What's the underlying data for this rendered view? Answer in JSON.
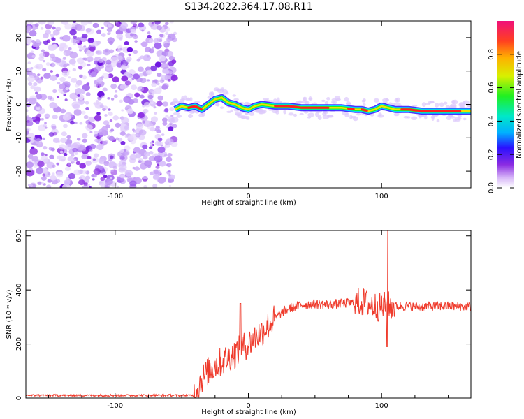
{
  "title": "S134.2022.364.17.08.R11",
  "chart_data": [
    {
      "type": "heatmap",
      "xlabel": "Height of straight line (km)",
      "ylabel": "Frequency (Hz)",
      "xlim": [
        -167,
        167
      ],
      "ylim": [
        -25,
        25
      ],
      "xticks": [
        -100,
        0,
        100
      ],
      "yticks": [
        -20,
        -10,
        0,
        10,
        20
      ],
      "colorbar": {
        "label": "Normalized spectral amplitude",
        "range": [
          0,
          1
        ],
        "ticks": [
          "0.0",
          "0.2",
          "0.4",
          "0.6",
          "0.8"
        ]
      },
      "noise_region_x": [
        -167,
        -55
      ],
      "ridge_track": {
        "x": [
          -55,
          -50,
          -45,
          -40,
          -35,
          -30,
          -25,
          -20,
          -15,
          -10,
          -5,
          0,
          5,
          10,
          20,
          30,
          40,
          50,
          60,
          70,
          80,
          85,
          90,
          95,
          100,
          110,
          120,
          130,
          140,
          150,
          160,
          167
        ],
        "frequency": [
          -1.5,
          -0.5,
          -1,
          -0.5,
          -1.5,
          0,
          1.5,
          2,
          0.5,
          0,
          -1,
          -1.5,
          -0.5,
          0,
          -0.5,
          -0.5,
          -1,
          -1,
          -1,
          -1,
          -1.5,
          -1.5,
          -2,
          -1.5,
          -0.5,
          -1.5,
          -1.5,
          -2,
          -2,
          -2,
          -2,
          -2
        ]
      }
    },
    {
      "type": "line",
      "xlabel": "Height of straight line (km)",
      "ylabel": "SNR (10 * v/v)",
      "xlim": [
        -167,
        167
      ],
      "ylim": [
        0,
        620
      ],
      "xticks": [
        -100,
        0,
        100
      ],
      "yticks": [
        0,
        200,
        400,
        600
      ],
      "series": [
        {
          "color": "#ef3b2c",
          "x": [
            -167,
            -150,
            -130,
            -110,
            -90,
            -70,
            -50,
            -41,
            -35,
            -30,
            -25,
            -20,
            -15,
            -10,
            -5,
            0,
            5,
            10,
            15,
            20,
            25,
            30,
            40,
            50,
            60,
            70,
            80,
            85,
            90,
            95,
            100,
            104,
            106,
            110,
            120,
            130,
            140,
            150,
            160,
            167
          ],
          "y": [
            10,
            10,
            10,
            10,
            10,
            10,
            10,
            10,
            70,
            100,
            120,
            135,
            150,
            165,
            185,
            200,
            225,
            245,
            270,
            295,
            315,
            330,
            345,
            348,
            345,
            350,
            352,
            355,
            350,
            340,
            335,
            345,
            340,
            340,
            340,
            338,
            340,
            340,
            338,
            338
          ]
        }
      ]
    }
  ]
}
